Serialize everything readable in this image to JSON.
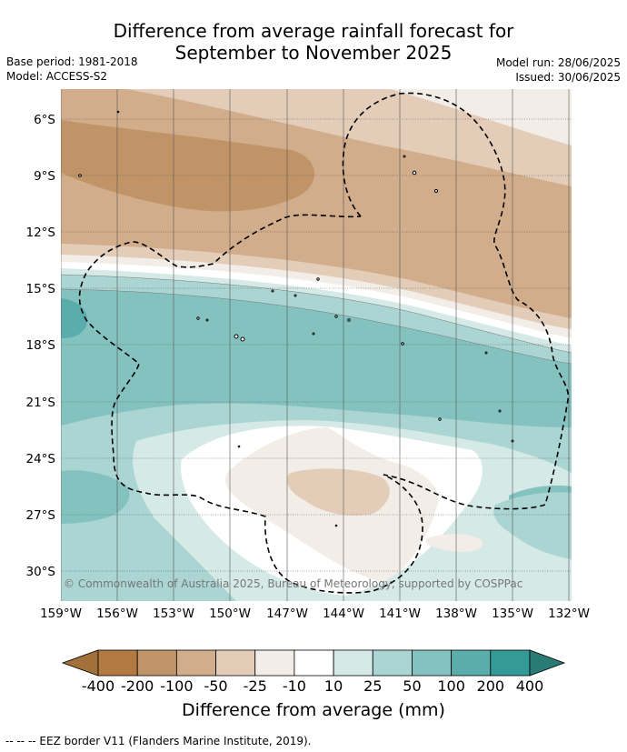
{
  "title_line1": "Difference from average rainfall forecast for",
  "title_line2": "September to November 2025",
  "base_period": "Base period: 1981-2018",
  "model": "Model: ACCESS-S2",
  "model_run": "Model run: 28/06/2025",
  "issued": "Issued: 30/06/2025",
  "copyright": "© Commonwealth of Australia 2025, Bureau of Meteorology, supported by COSPPac",
  "lat_labels": [
    "6°S",
    "9°S",
    "12°S",
    "15°S",
    "18°S",
    "21°S",
    "24°S",
    "27°S",
    "30°S"
  ],
  "lon_labels": [
    "159°W",
    "156°W",
    "153°W",
    "150°W",
    "147°W",
    "144°W",
    "141°W",
    "138°W",
    "135°W",
    "132°W"
  ],
  "colorbar": {
    "ticks": [
      "-400",
      "-200",
      "-100",
      "-50",
      "-25",
      "-10",
      "10",
      "25",
      "50",
      "100",
      "200",
      "400"
    ],
    "colors": [
      "#a2703a",
      "#b27a41",
      "#c09466",
      "#d2ad8c",
      "#e3cdb9",
      "#f2ede6",
      "#ffffff",
      "#d5e9e6",
      "#aad5d2",
      "#84c2c0",
      "#5aadab",
      "#349a96",
      "#2a7a76"
    ],
    "label": "Difference from average (mm)"
  },
  "footnote": "--  --  -- EEZ border V11 (Flanders Marine Institute, 2019)."
}
